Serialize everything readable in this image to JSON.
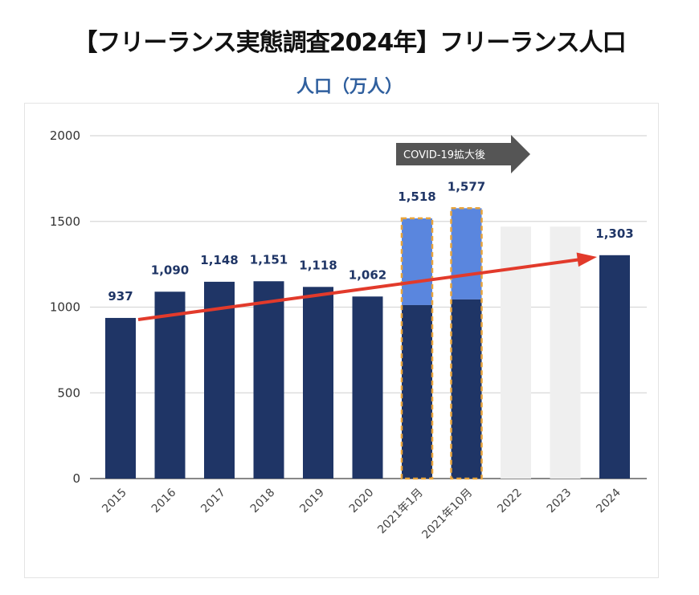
{
  "title": "【フリーランス実態調査2024年】フリーランス人口",
  "chart_data": {
    "type": "bar",
    "title": "人口（万人）",
    "categories": [
      "2015",
      "2016",
      "2017",
      "2018",
      "2019",
      "2020",
      "2021年1月",
      "2021年10月",
      "2022",
      "2023",
      "2024"
    ],
    "values": [
      937,
      1090,
      1148,
      1151,
      1118,
      1062,
      1518,
      1577,
      1470,
      1470,
      1303
    ],
    "data_labels": [
      "937",
      "1,090",
      "1,148",
      "1,151",
      "1,118",
      "1,062",
      "1,518",
      "1,577",
      "",
      "",
      "1,303"
    ],
    "stacked_base_values": {
      "2021年1月": 1012,
      "2021年10月": 1045
    },
    "muted_categories": [
      "2022",
      "2023"
    ],
    "highlighted_categories": [
      "2021年1月",
      "2021年10月"
    ],
    "ylim": [
      0,
      2000
    ],
    "yticks": [
      0,
      500,
      1000,
      1500,
      2000
    ],
    "grid": true,
    "annotation": "COVID-19拡大後",
    "trend_arrow": {
      "from": "2015",
      "to": "2024"
    },
    "colors": {
      "bar": "#1f3566",
      "covid_extra": "#5a86de",
      "muted": "#efefef",
      "highlight_border": "#e8a33a",
      "arrow": "#e23a2b",
      "label": "#1f3566",
      "annotation_bg": "#555555"
    }
  }
}
